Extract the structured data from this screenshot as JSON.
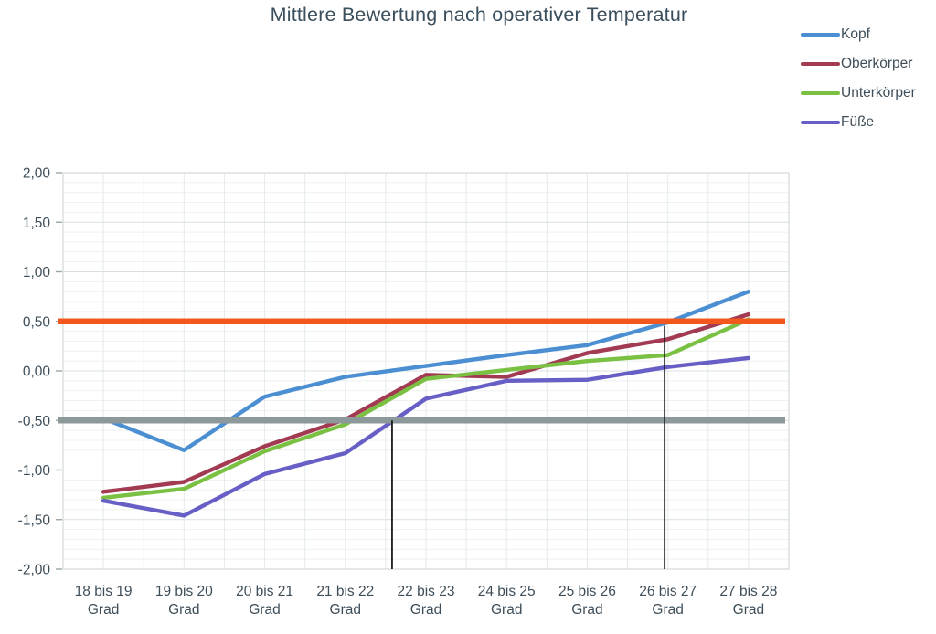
{
  "title": "Mittlere Bewertung nach operativer Temperatur",
  "chart_data": {
    "type": "line",
    "title": "Mittlere Bewertung nach operativer Temperatur",
    "categories": [
      "18 bis 19 Grad",
      "19 bis 20 Grad",
      "20 bis 21 Grad",
      "21 bis 22 Grad",
      "22 bis 23 Grad",
      "24 bis 25 Grad",
      "25 bis 26 Grad",
      "26 bis 27 Grad",
      "27 bis 28 Grad"
    ],
    "xlabel": "",
    "ylabel": "",
    "ylim": [
      -2.0,
      2.0
    ],
    "y_ticks": [
      {
        "label": "2,00",
        "value": 2.0
      },
      {
        "label": "1,50",
        "value": 1.5
      },
      {
        "label": "1,00",
        "value": 1.0
      },
      {
        "label": "0,50",
        "value": 0.5
      },
      {
        "label": "0,00",
        "value": 0.0
      },
      {
        "label": "-0,50",
        "value": -0.5
      },
      {
        "label": "-1,00",
        "value": -1.0
      },
      {
        "label": "-1,50",
        "value": -1.5
      },
      {
        "label": "-2,00",
        "value": -2.0
      }
    ],
    "minor_grid_step": 0.1,
    "grid": true,
    "legend_position": "top-right",
    "series": [
      {
        "name": "Kopf",
        "color": "#4B8FD2",
        "values": [
          -0.48,
          -0.8,
          -0.26,
          -0.06,
          0.05,
          0.16,
          0.26,
          0.49,
          0.8
        ]
      },
      {
        "name": "Oberkörper",
        "color": "#A23B52",
        "values": [
          -1.22,
          -1.12,
          -0.76,
          -0.49,
          -0.04,
          -0.06,
          0.18,
          0.32,
          0.57
        ]
      },
      {
        "name": "Unterkörper",
        "color": "#7AC143",
        "values": [
          -1.28,
          -1.19,
          -0.81,
          -0.54,
          -0.08,
          0.01,
          0.1,
          0.16,
          0.52
        ]
      },
      {
        "name": "Füße",
        "color": "#675EC6",
        "values": [
          -1.31,
          -1.46,
          -1.04,
          -0.83,
          -0.28,
          -0.1,
          -0.09,
          0.04,
          0.13
        ]
      }
    ],
    "reference_lines": [
      {
        "value": 0.5,
        "color": "#F2571E"
      },
      {
        "value": -0.5,
        "color": "#8D989A"
      }
    ],
    "vertical_marker_lines": [
      {
        "x_index": 3.58,
        "y_from": -2.0,
        "y_to": -0.5,
        "color": "#1A1A1A"
      },
      {
        "x_index": 6.96,
        "y_from": -2.0,
        "y_to": 0.455,
        "color": "#1A1A1A"
      }
    ]
  }
}
